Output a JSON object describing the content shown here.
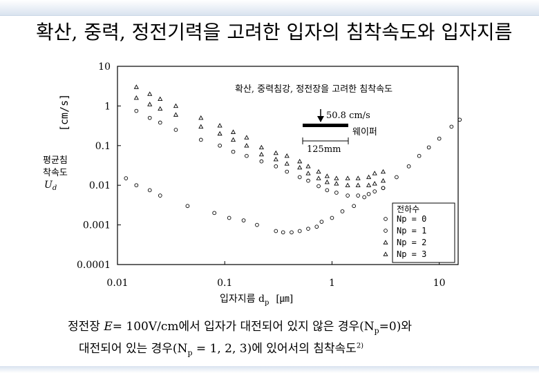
{
  "slide_title": "확산, 중력, 정전기력을 고려한 입자의 침착속도와 입자지름",
  "chart_data": {
    "type": "scatter",
    "xscale": "log",
    "yscale": "log",
    "xlim": [
      0.01,
      15
    ],
    "ylim": [
      0.0001,
      10
    ],
    "xticks": [
      {
        "v": 0.01,
        "label": "0.01"
      },
      {
        "v": 0.1,
        "label": "0.1"
      },
      {
        "v": 1,
        "label": "1"
      },
      {
        "v": 10,
        "label": "10"
      }
    ],
    "yticks": [
      {
        "v": 10,
        "label": "10"
      },
      {
        "v": 1,
        "label": "1"
      },
      {
        "v": 0.1,
        "label": "0.1"
      },
      {
        "v": 0.01,
        "label": "0.01"
      },
      {
        "v": 0.001,
        "label": "0.001"
      },
      {
        "v": 0.0001,
        "label": "0.0001"
      }
    ],
    "xlabel_main": "입자지름 d",
    "xlabel_sub": "p",
    "xlabel_unit": "[㎛]",
    "ylabel_unit": "[cm/s]",
    "ylabel_lines": [
      "평균침",
      "착속도"
    ],
    "ylabel_symbol": "U",
    "ylabel_symbol_sub": "d",
    "annotation_title": "확산, 중력침강, 정전장을 고려한 침착속도",
    "annotation_velocity": "50.8 cm/s",
    "annotation_wafer": "웨이퍼",
    "annotation_length": "125mm",
    "legend_title": "전하수",
    "series": [
      {
        "name": "Np = 0",
        "marker": "circle",
        "points": [
          [
            0.012,
            0.015
          ],
          [
            0.015,
            0.01
          ],
          [
            0.02,
            0.0075
          ],
          [
            0.025,
            0.0055
          ],
          [
            0.045,
            0.003
          ],
          [
            0.08,
            0.002
          ],
          [
            0.11,
            0.0015
          ],
          [
            0.15,
            0.0013
          ],
          [
            0.2,
            0.001
          ],
          [
            0.3,
            0.0007
          ],
          [
            0.35,
            0.00065
          ],
          [
            0.42,
            0.00065
          ],
          [
            0.5,
            0.0007
          ],
          [
            0.6,
            0.0008
          ],
          [
            0.72,
            0.0009
          ],
          [
            0.8,
            0.0012
          ],
          [
            1.0,
            0.0015
          ],
          [
            1.25,
            0.0022
          ],
          [
            1.6,
            0.003
          ],
          [
            2.0,
            0.005
          ],
          [
            3.0,
            0.0085
          ],
          [
            4.0,
            0.016
          ],
          [
            5.2,
            0.03
          ],
          [
            6.5,
            0.055
          ],
          [
            8.0,
            0.09
          ],
          [
            10.0,
            0.15
          ],
          [
            13.0,
            0.3
          ],
          [
            15.5,
            0.45
          ]
        ]
      },
      {
        "name": "Np = 1",
        "marker": "circle",
        "points": [
          [
            0.015,
            0.75
          ],
          [
            0.02,
            0.5
          ],
          [
            0.025,
            0.38
          ],
          [
            0.035,
            0.25
          ],
          [
            0.06,
            0.14
          ],
          [
            0.09,
            0.1
          ],
          [
            0.12,
            0.07
          ],
          [
            0.16,
            0.055
          ],
          [
            0.22,
            0.04
          ],
          [
            0.3,
            0.03
          ],
          [
            0.38,
            0.022
          ],
          [
            0.5,
            0.016
          ],
          [
            0.6,
            0.013
          ],
          [
            0.75,
            0.0095
          ],
          [
            0.9,
            0.0075
          ],
          [
            1.1,
            0.0065
          ],
          [
            1.4,
            0.0055
          ],
          [
            1.75,
            0.0055
          ],
          [
            2.2,
            0.006
          ],
          [
            2.5,
            0.007
          ],
          [
            3.0,
            0.0085
          ]
        ]
      },
      {
        "name": "Np = 2",
        "marker": "triangle",
        "points": [
          [
            0.015,
            1.6
          ],
          [
            0.02,
            1.1
          ],
          [
            0.025,
            0.85
          ],
          [
            0.035,
            0.6
          ],
          [
            0.06,
            0.3
          ],
          [
            0.09,
            0.2
          ],
          [
            0.12,
            0.14
          ],
          [
            0.16,
            0.1
          ],
          [
            0.22,
            0.06
          ],
          [
            0.3,
            0.045
          ],
          [
            0.38,
            0.035
          ],
          [
            0.5,
            0.028
          ],
          [
            0.6,
            0.02
          ],
          [
            0.75,
            0.015
          ],
          [
            0.9,
            0.012
          ],
          [
            1.1,
            0.011
          ],
          [
            1.4,
            0.01
          ],
          [
            1.75,
            0.01
          ],
          [
            2.2,
            0.01
          ],
          [
            2.5,
            0.011
          ],
          [
            3.0,
            0.013
          ]
        ]
      },
      {
        "name": "Np = 3",
        "marker": "triangle",
        "points": [
          [
            0.015,
            3.0
          ],
          [
            0.02,
            2.0
          ],
          [
            0.025,
            1.5
          ],
          [
            0.035,
            1.0
          ],
          [
            0.06,
            0.5
          ],
          [
            0.09,
            0.32
          ],
          [
            0.12,
            0.22
          ],
          [
            0.16,
            0.16
          ],
          [
            0.22,
            0.09
          ],
          [
            0.3,
            0.065
          ],
          [
            0.38,
            0.055
          ],
          [
            0.5,
            0.04
          ],
          [
            0.6,
            0.03
          ],
          [
            0.75,
            0.022
          ],
          [
            0.9,
            0.017
          ],
          [
            1.1,
            0.015
          ],
          [
            1.4,
            0.015
          ],
          [
            1.75,
            0.015
          ],
          [
            2.2,
            0.016
          ],
          [
            2.5,
            0.02
          ],
          [
            3.0,
            0.022
          ]
        ]
      }
    ]
  },
  "caption": {
    "line1_pre": "정전장",
    "line1_symbol": "E",
    "line1_mid": "= 100V/cm에서 입자가 대전되어 있지 않은 경우(N",
    "line1_sub": "p",
    "line1_post": "=0)와",
    "line2_pre": "대전되어 있는 경우(N",
    "line2_sub": "p",
    "line2_post": " = 1, 2, 3)에 있어서의 침착속도",
    "line2_ref": "2)"
  },
  "colors": {
    "frame": "#000000",
    "accent": "#d9e3ef"
  }
}
